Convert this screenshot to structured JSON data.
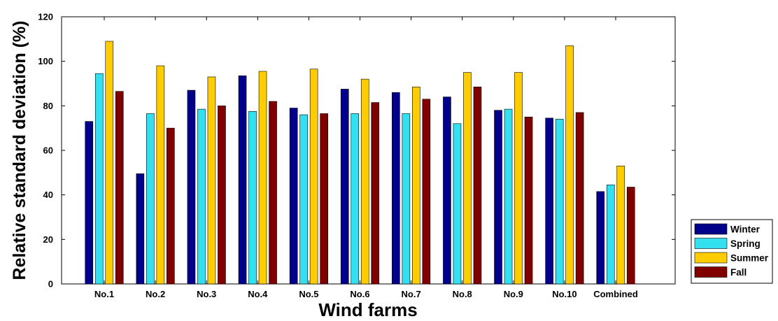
{
  "chart_data": {
    "type": "bar",
    "xlabel": "Wind farms",
    "ylabel": "Relative standard deviation (%)",
    "categories": [
      "No.1",
      "No.2",
      "No.3",
      "No.4",
      "No.5",
      "No.6",
      "No.7",
      "No.8",
      "No.9",
      "No.10",
      "Combined"
    ],
    "series": [
      {
        "name": "Winter",
        "color": "#00008b",
        "values": [
          73,
          49.5,
          87,
          93.5,
          79,
          87.5,
          86,
          84,
          78,
          74.5,
          41.5
        ]
      },
      {
        "name": "Spring",
        "color": "#33e0f0",
        "values": [
          94.5,
          76.5,
          78.5,
          77.5,
          76,
          76.5,
          76.5,
          72,
          78.5,
          74,
          44.5
        ]
      },
      {
        "name": "Summer",
        "color": "#ffcc00",
        "values": [
          109,
          98,
          93,
          95.5,
          96.5,
          92,
          88.5,
          95,
          95,
          107,
          53
        ]
      },
      {
        "name": "Fall",
        "color": "#800000",
        "values": [
          86.5,
          70,
          80,
          82,
          76.5,
          81.5,
          83,
          88.5,
          75,
          77,
          43.5
        ]
      }
    ],
    "ylim": [
      0,
      120
    ],
    "yticks": [
      0,
      20,
      40,
      60,
      80,
      100,
      120
    ],
    "grid": false,
    "legend_position": "bottom-right, outside plot"
  }
}
